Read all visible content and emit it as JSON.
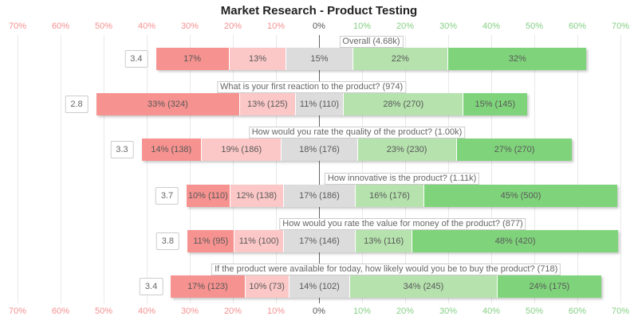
{
  "title": "Market Research - Product Testing",
  "colors": {
    "strongly_negative": "#f6928f",
    "negative": "#fbc8c7",
    "neutral": "#dcdcdc",
    "positive": "#b5e2ad",
    "strongly_positive": "#7fd47b",
    "axis_negative_label": "#f59090",
    "axis_positive_label": "#85cf85",
    "axis_zero_label": "#555555",
    "gridline": "#e9e9e9",
    "zero_line": "#666666",
    "label_text": "#666666"
  },
  "axis": {
    "ticks": [
      {
        "value": -70,
        "label": "70%"
      },
      {
        "value": -60,
        "label": "60%"
      },
      {
        "value": -50,
        "label": "50%"
      },
      {
        "value": -40,
        "label": "40%"
      },
      {
        "value": -30,
        "label": "30%"
      },
      {
        "value": -20,
        "label": "20%"
      },
      {
        "value": -10,
        "label": "10%"
      },
      {
        "value": 0,
        "label": "0%"
      },
      {
        "value": 10,
        "label": "10%"
      },
      {
        "value": 20,
        "label": "20%"
      },
      {
        "value": 30,
        "label": "30%"
      },
      {
        "value": 40,
        "label": "40%"
      },
      {
        "value": 50,
        "label": "50%"
      },
      {
        "value": 60,
        "label": "60%"
      },
      {
        "value": 70,
        "label": "70%"
      }
    ]
  },
  "rows": [
    {
      "score": "3.4",
      "question": "Overall (4.68k)",
      "segments": [
        {
          "label": "17%",
          "pct": 16.88
        },
        {
          "label": "13%",
          "pct": 13.29
        },
        {
          "label": "15%",
          "pct": 15.39
        },
        {
          "label": "22%",
          "pct": 22.16
        },
        {
          "label": "32%",
          "pct": 32.27
        }
      ]
    },
    {
      "score": "2.8",
      "question": "What is your first reaction to the product? (974)",
      "segments": [
        {
          "label": "33% (324)",
          "pct": 33.26
        },
        {
          "label": "13% (125)",
          "pct": 12.83
        },
        {
          "label": "11% (110)",
          "pct": 11.29
        },
        {
          "label": "28% (270)",
          "pct": 27.72
        },
        {
          "label": "15% (145)",
          "pct": 14.89
        }
      ]
    },
    {
      "score": "3.3",
      "question": "How would you rate the quality of the product? (1.00k)",
      "segments": [
        {
          "label": "14% (138)",
          "pct": 13.8
        },
        {
          "label": "19% (186)",
          "pct": 18.6
        },
        {
          "label": "18% (176)",
          "pct": 17.6
        },
        {
          "label": "23% (230)",
          "pct": 23.0
        },
        {
          "label": "27% (270)",
          "pct": 27.0
        }
      ]
    },
    {
      "score": "3.7",
      "question": "How innovative is the product? (1.11k)",
      "segments": [
        {
          "label": "10% (110)",
          "pct": 9.91
        },
        {
          "label": "12% (138)",
          "pct": 12.43
        },
        {
          "label": "17% (186)",
          "pct": 16.76
        },
        {
          "label": "16% (176)",
          "pct": 15.86
        },
        {
          "label": "45% (500)",
          "pct": 45.05
        }
      ]
    },
    {
      "score": "3.8",
      "question": "How would you rate the value for money of the product? (877)",
      "segments": [
        {
          "label": "11% (95)",
          "pct": 10.83
        },
        {
          "label": "11% (100)",
          "pct": 11.4
        },
        {
          "label": "17% (146)",
          "pct": 16.65
        },
        {
          "label": "13% (116)",
          "pct": 13.23
        },
        {
          "label": "48% (420)",
          "pct": 47.89
        }
      ]
    },
    {
      "score": "3.4",
      "question": "If the product were available for today, how likely would you be to buy the product? (718)",
      "segments": [
        {
          "label": "17% (123)",
          "pct": 17.13
        },
        {
          "label": "10% (73)",
          "pct": 10.17
        },
        {
          "label": "14% (102)",
          "pct": 14.21
        },
        {
          "label": "34% (245)",
          "pct": 34.12
        },
        {
          "label": "24% (175)",
          "pct": 24.37
        }
      ]
    }
  ],
  "chart_data": {
    "type": "bar",
    "subtype": "diverging-stacked-likert",
    "title": "Market Research - Product Testing",
    "orientation": "horizontal",
    "axis_range_pct": [
      -70,
      70
    ],
    "tick_step_pct": 10,
    "grid": true,
    "legend": false,
    "categories": [
      "Overall (4.68k)",
      "What is your first reaction to the product? (974)",
      "How would you rate the quality of the product? (1.00k)",
      "How innovative is the product? (1.11k)",
      "How would you rate the value for money of the product? (877)",
      "If the product were available for today, how likely would you be to buy the product? (718)"
    ],
    "mean_scores": [
      3.4,
      2.8,
      3.3,
      3.7,
      3.8,
      3.4
    ],
    "series": [
      {
        "name": "strongly-negative",
        "pct": [
          17,
          33,
          14,
          10,
          11,
          17
        ],
        "counts": [
          null,
          324,
          138,
          110,
          95,
          123
        ]
      },
      {
        "name": "negative",
        "pct": [
          13,
          13,
          19,
          12,
          11,
          10
        ],
        "counts": [
          null,
          125,
          186,
          138,
          100,
          73
        ]
      },
      {
        "name": "neutral",
        "pct": [
          15,
          11,
          18,
          17,
          17,
          14
        ],
        "counts": [
          null,
          110,
          176,
          186,
          146,
          102
        ]
      },
      {
        "name": "positive",
        "pct": [
          22,
          28,
          23,
          16,
          13,
          34
        ],
        "counts": [
          null,
          270,
          230,
          176,
          116,
          245
        ]
      },
      {
        "name": "strongly-positive",
        "pct": [
          32,
          15,
          27,
          45,
          48,
          24
        ],
        "counts": [
          null,
          145,
          270,
          500,
          420,
          175
        ]
      }
    ],
    "layout_hint": "neutral segment centered on 0%; negative categories extend left (red), positive right (green); mean score box at left end of each bar; question label boxed above each bar"
  }
}
